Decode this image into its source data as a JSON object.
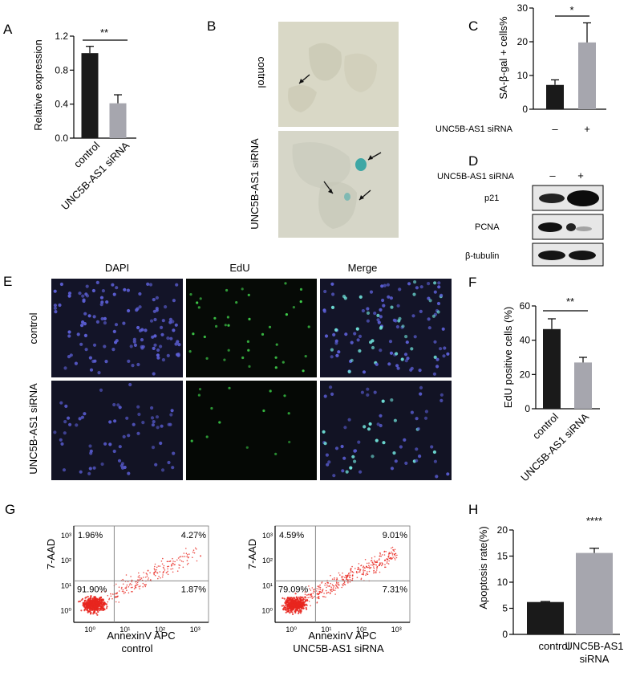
{
  "panels": {
    "A": {
      "letter": "A",
      "chart_data": {
        "type": "bar",
        "categories": [
          "control",
          "UNC5B-AS1 siRNA"
        ],
        "values": [
          1.0,
          0.41
        ],
        "errors": [
          0.08,
          0.1
        ],
        "ylabel": "Relative expression",
        "ylim": [
          0,
          1.2
        ],
        "yticks": [
          "0.0",
          "0.4",
          "0.8",
          "1.2"
        ],
        "significance": "**",
        "colors": [
          "#1a1a1a",
          "#a6a6ae"
        ]
      }
    },
    "B": {
      "letter": "B",
      "row_labels": [
        "control",
        "UNC5B-AS1 siRNA"
      ]
    },
    "C": {
      "letter": "C",
      "chart_data": {
        "type": "bar",
        "categories": [
          "–",
          "+"
        ],
        "group_label": "UNC5B-AS1 siRNA",
        "values": [
          7.2,
          19.8
        ],
        "errors": [
          1.5,
          5.8
        ],
        "ylabel": "SA-β-gal + cells%",
        "ylim": [
          0,
          30
        ],
        "yticks": [
          "0",
          "10",
          "20",
          "30"
        ],
        "significance": "*",
        "colors": [
          "#1a1a1a",
          "#a6a6ae"
        ]
      }
    },
    "D": {
      "letter": "D",
      "header": "UNC5B-AS1 siRNA",
      "lanes": [
        "–",
        "+"
      ],
      "bands": [
        "p21",
        "PCNA",
        "β-tubulin"
      ]
    },
    "E": {
      "letter": "E",
      "columns": [
        "DAPI",
        "EdU",
        "Merge"
      ],
      "rows": [
        "control",
        "UNC5B-AS1 siRNA"
      ]
    },
    "F": {
      "letter": "F",
      "chart_data": {
        "type": "bar",
        "categories": [
          "control",
          "UNC5B-AS1 siRNA"
        ],
        "values": [
          46.5,
          27
        ],
        "errors": [
          6,
          3
        ],
        "ylabel": "EdU positive cells (%)",
        "ylim": [
          0,
          60
        ],
        "yticks": [
          "0",
          "20",
          "40",
          "60"
        ],
        "significance": "**",
        "colors": [
          "#1a1a1a",
          "#a6a6ae"
        ]
      }
    },
    "G": {
      "letter": "G",
      "plots": [
        {
          "caption": "control",
          "quadrants": {
            "ul": "1.96%",
            "ur": "4.27%",
            "ll": "91.90%",
            "lr": "1.87%"
          }
        },
        {
          "caption": "UNC5B-AS1 siRNA",
          "quadrants": {
            "ul": "4.59%",
            "ur": "9.01%",
            "ll": "79.09%",
            "lr": "7.31%"
          }
        }
      ],
      "xlabel": "AnnexinV APC",
      "ylabel": "7-AAD",
      "xticks": [
        "10⁰",
        "10¹",
        "10²",
        "10³"
      ],
      "yticks": [
        "10⁰",
        "10¹",
        "10²",
        "10³"
      ],
      "dot_color": "#e8261e"
    },
    "H": {
      "letter": "H",
      "chart_data": {
        "type": "bar",
        "categories": [
          "control",
          "UNC5B-AS1 siRNA"
        ],
        "category_lines": [
          [
            "control"
          ],
          [
            "UNC5B-AS1",
            "siRNA"
          ]
        ],
        "values": [
          6.2,
          15.6
        ],
        "errors": [
          0.1,
          0.9
        ],
        "ylabel": "Apoptosis rate(%)",
        "ylim": [
          0,
          20
        ],
        "yticks": [
          "0",
          "5",
          "10",
          "15",
          "20"
        ],
        "significance": "****",
        "colors": [
          "#1a1a1a",
          "#a6a6ae"
        ]
      }
    }
  }
}
